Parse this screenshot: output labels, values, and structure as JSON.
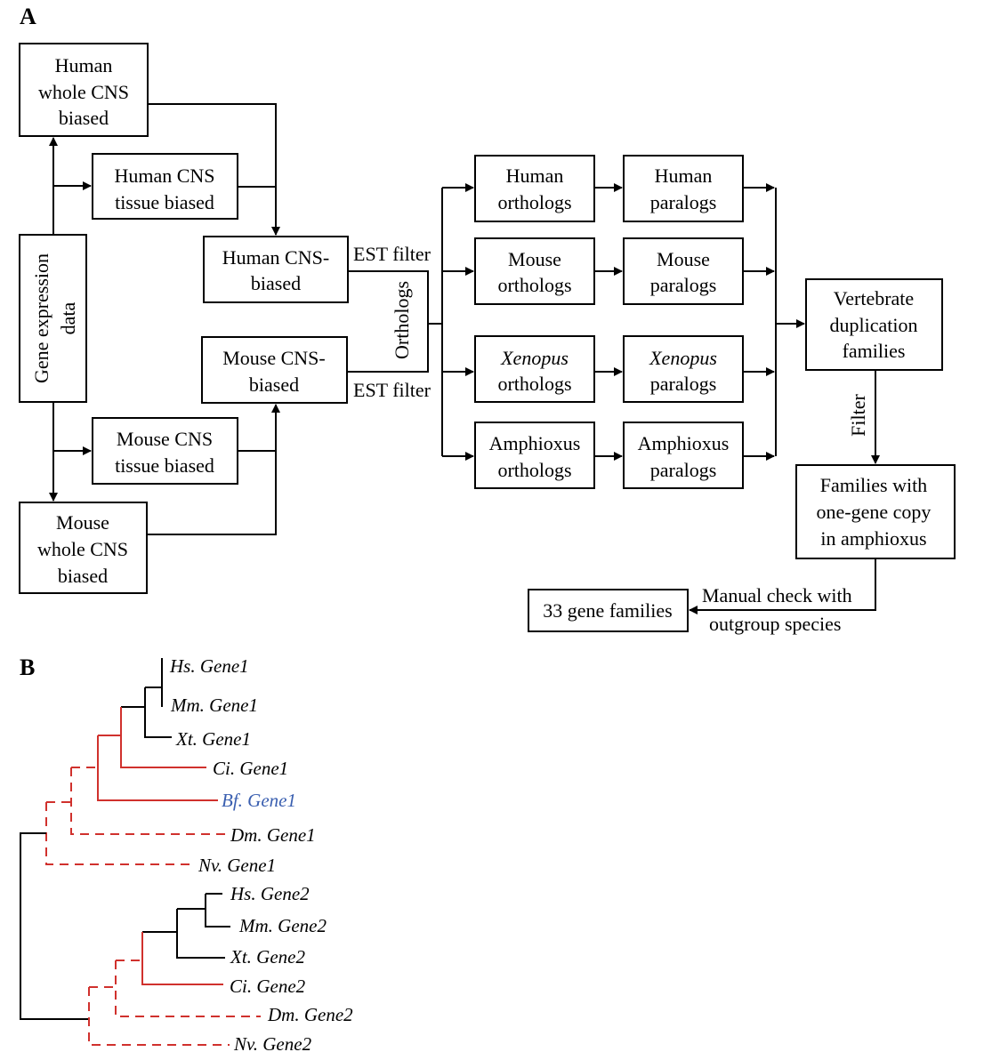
{
  "panel_a": {
    "label": "A",
    "gene_expression": {
      "line1": "Gene expression",
      "line2": "data"
    },
    "human_whole": [
      "Human",
      "whole CNS",
      "biased"
    ],
    "human_tissue": [
      "Human CNS",
      "tissue biased"
    ],
    "mouse_tissue": [
      "Mouse CNS",
      "tissue biased"
    ],
    "mouse_whole": [
      "Mouse",
      "whole CNS",
      "biased"
    ],
    "human_cns": [
      "Human CNS-",
      "biased"
    ],
    "mouse_cns": [
      "Mouse CNS-",
      "biased"
    ],
    "est_filter_top": "EST filter",
    "est_filter_bottom": "EST filter",
    "orthologs_label": "Orthologs",
    "orthologs": [
      {
        "species": "Human",
        "kind": "orthologs"
      },
      {
        "species": "Mouse",
        "kind": "orthologs"
      },
      {
        "species": "Xenopus",
        "kind": "orthologs"
      },
      {
        "species": "Amphioxus",
        "kind": "orthologs"
      }
    ],
    "paralogs": [
      {
        "species": "Human",
        "kind": "paralogs"
      },
      {
        "species": "Mouse",
        "kind": "paralogs"
      },
      {
        "species": "Xenopus",
        "kind": "paralogs"
      },
      {
        "species": "Amphioxus",
        "kind": "paralogs"
      }
    ],
    "vertebrate": [
      "Vertebrate",
      "duplication",
      "families"
    ],
    "filter_label": "Filter",
    "families_one_copy": [
      "Families with",
      "one-gene copy",
      "in amphioxus"
    ],
    "manual_check": [
      "Manual check with",
      "outgroup species"
    ],
    "result": "33 gene families"
  },
  "panel_b": {
    "label": "B",
    "leaves": [
      "Hs. Gene1",
      "Mm. Gene1",
      "Xt. Gene1",
      "Ci. Gene1",
      "Bf. Gene1",
      "Dm. Gene1",
      "Nv. Gene1",
      "Hs. Gene2",
      "Mm. Gene2",
      "Xt. Gene2",
      "Ci. Gene2",
      "Dm. Gene2",
      "Nv. Gene2"
    ],
    "colors": {
      "vertebrate": "#000000",
      "chordate": "#d0312d",
      "highlight_leaf": "#3a5fb0"
    }
  }
}
